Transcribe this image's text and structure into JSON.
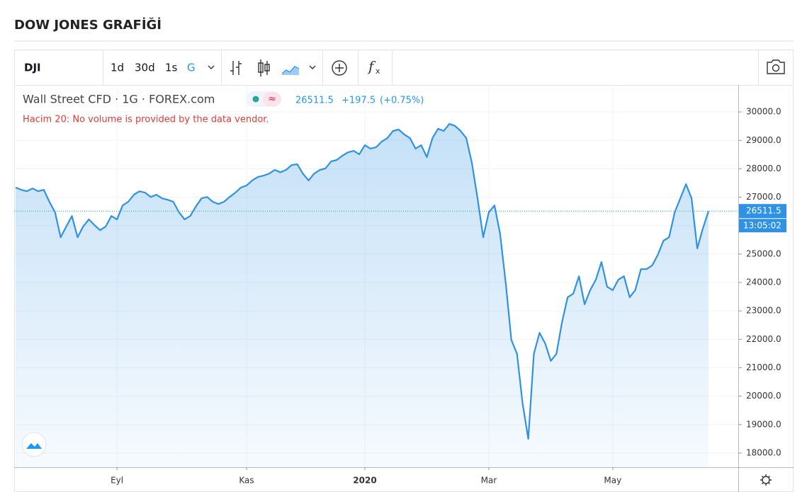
{
  "header": {
    "title": "DOW JONES GRAFİĞİ"
  },
  "toolbar": {
    "symbol": "DJI",
    "intervals": [
      "1d",
      "30d",
      "1s",
      "G"
    ]
  },
  "legend": {
    "name": "Wall Street CFD · 1G · FOREX.com",
    "price": "26511.5",
    "change": "+197.5",
    "change_pct": "(+0.75%)",
    "volume_note": "Hacim 20: No volume is provided by the data vendor."
  },
  "price_tag": {
    "time": "13:05:02"
  },
  "chart_data": {
    "type": "area",
    "color": "#2f92e4",
    "grid": true,
    "categories": [
      null,
      null,
      null,
      null,
      null,
      null,
      null,
      null,
      null,
      null,
      null,
      null,
      null,
      null,
      null,
      null,
      null,
      null,
      "Eyl",
      null,
      null,
      null,
      null,
      null,
      null,
      null,
      null,
      null,
      null,
      null,
      null,
      null,
      null,
      null,
      null,
      null,
      null,
      null,
      null,
      null,
      null,
      "Kas",
      null,
      null,
      null,
      null,
      null,
      null,
      null,
      null,
      null,
      null,
      null,
      null,
      null,
      null,
      null,
      null,
      null,
      null,
      null,
      null,
      "2020",
      null,
      null,
      null,
      null,
      null,
      null,
      null,
      null,
      null,
      null,
      null,
      null,
      null,
      null,
      null,
      null,
      null,
      null,
      null,
      null,
      null,
      "Mar",
      null,
      null,
      null,
      null,
      null,
      null,
      null,
      null,
      null,
      null,
      null,
      null,
      null,
      null,
      null,
      null,
      null,
      null,
      null,
      null,
      null,
      "May",
      null,
      null,
      null,
      null,
      null,
      null,
      null,
      null,
      null,
      null,
      null,
      null,
      null,
      null,
      null,
      null,
      null
    ],
    "values": [
      27340,
      27260,
      27210,
      27310,
      27210,
      27260,
      26840,
      26470,
      25590,
      25970,
      26340,
      25590,
      25970,
      26220,
      26020,
      25840,
      25970,
      26340,
      26220,
      26710,
      26840,
      27090,
      27210,
      27160,
      27010,
      27090,
      26960,
      26910,
      26840,
      26470,
      26220,
      26340,
      26670,
      26960,
      27010,
      26840,
      26760,
      26840,
      27010,
      27160,
      27340,
      27410,
      27590,
      27710,
      27760,
      27830,
      27960,
      27880,
      27960,
      28130,
      28160,
      27830,
      27590,
      27830,
      27960,
      28010,
      28260,
      28310,
      28460,
      28580,
      28630,
      28510,
      28830,
      28710,
      28760,
      28960,
      29080,
      29330,
      29380,
      29210,
      29080,
      28710,
      28830,
      28410,
      29080,
      29410,
      29330,
      29580,
      29510,
      29330,
      29080,
      28210,
      26960,
      25590,
      26470,
      26710,
      25720,
      23980,
      21980,
      21490,
      19740,
      18500,
      21490,
      22230,
      21860,
      21240,
      21490,
      22610,
      23480,
      23610,
      24220,
      23230,
      23730,
      24100,
      24720,
      23850,
      23730,
      24100,
      24220,
      23480,
      23730,
      24470,
      24470,
      24600,
      24970,
      25470,
      25590,
      26470,
      26960,
      27460,
      26960,
      25200,
      25900,
      26511.5
    ],
    "ylim": [
      17500,
      30950
    ],
    "yticks": [
      {
        "value": 18000,
        "label": "18000.0"
      },
      {
        "value": 19000,
        "label": "19000.0"
      },
      {
        "value": 20000,
        "label": "20000.0"
      },
      {
        "value": 21000,
        "label": "21000.0"
      },
      {
        "value": 22000,
        "label": "22000.0"
      },
      {
        "value": 23000,
        "label": "23000.0"
      },
      {
        "value": 24000,
        "label": "24000.0"
      },
      {
        "value": 25000,
        "label": "25000.0"
      },
      {
        "value": 26000,
        "label": "26000.0"
      },
      {
        "value": 27000,
        "label": "27000.0"
      },
      {
        "value": 28000,
        "label": "28000.0"
      },
      {
        "value": 29000,
        "label": "29000.0"
      },
      {
        "value": 30000,
        "label": "30000.0"
      }
    ]
  }
}
